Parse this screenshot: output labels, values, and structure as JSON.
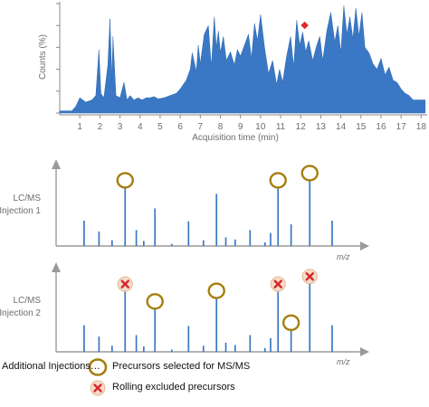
{
  "colors": {
    "accent": "#3a78c5",
    "axis": "#8a8a8a",
    "selected": "#a57f0e",
    "excluded": "#d8272b"
  },
  "chromatogram": {
    "ylabel": "Counts (%)",
    "xlabel": "Acquisition time (min)",
    "x_ticks": [
      "1",
      "2",
      "3",
      "4",
      "5",
      "6",
      "7",
      "8",
      "9",
      "10",
      "11",
      "12",
      "13",
      "14",
      "15",
      "16",
      "17",
      "18"
    ],
    "marker_time": 12.2
  },
  "chart_data": [
    {
      "type": "area",
      "xlabel": "Acquisition time (min)",
      "ylabel": "Counts (%)",
      "xlim": [
        0,
        18.3
      ],
      "ylim": [
        0,
        100
      ],
      "x": [
        0.0,
        0.6,
        0.8,
        1.0,
        1.3,
        1.6,
        1.8,
        1.95,
        2.05,
        2.2,
        2.4,
        2.5,
        2.6,
        2.65,
        2.8,
        3.0,
        3.2,
        3.35,
        3.5,
        3.7,
        3.9,
        4.1,
        4.3,
        4.5,
        4.7,
        4.9,
        5.2,
        5.5,
        5.8,
        6.0,
        6.3,
        6.5,
        6.6,
        6.8,
        6.9,
        7.0,
        7.2,
        7.4,
        7.55,
        7.7,
        7.8,
        7.9,
        8.0,
        8.15,
        8.3,
        8.5,
        8.7,
        8.85,
        9.0,
        9.2,
        9.4,
        9.55,
        9.7,
        9.85,
        10.0,
        10.2,
        10.4,
        10.6,
        10.8,
        10.95,
        11.1,
        11.3,
        11.5,
        11.65,
        11.8,
        11.95,
        12.1,
        12.25,
        12.4,
        12.6,
        12.8,
        12.95,
        13.1,
        13.3,
        13.5,
        13.7,
        13.85,
        14.0,
        14.15,
        14.3,
        14.45,
        14.6,
        14.75,
        14.9,
        15.05,
        15.2,
        15.4,
        15.6,
        15.8,
        16.0,
        16.2,
        16.4,
        16.6,
        16.8,
        17.0,
        17.2,
        17.4,
        17.6,
        17.8,
        18.0,
        18.2
      ],
      "values": [
        2,
        2,
        6,
        14,
        10,
        12,
        16,
        58,
        18,
        14,
        44,
        86,
        30,
        70,
        16,
        14,
        28,
        12,
        16,
        12,
        14,
        12,
        14,
        14,
        15,
        13,
        14,
        16,
        18,
        22,
        30,
        40,
        55,
        38,
        62,
        45,
        72,
        80,
        42,
        88,
        60,
        75,
        55,
        70,
        48,
        56,
        44,
        58,
        52,
        62,
        72,
        50,
        82,
        66,
        90,
        60,
        36,
        48,
        26,
        40,
        28,
        52,
        70,
        42,
        85,
        62,
        74,
        56,
        66,
        48,
        62,
        70,
        48,
        75,
        92,
        65,
        80,
        55,
        98,
        72,
        88,
        68,
        96,
        70,
        92,
        60,
        55,
        45,
        40,
        50,
        35,
        42,
        30,
        28,
        22,
        18,
        16,
        12,
        12,
        12,
        12
      ]
    },
    {
      "type": "bar",
      "title": "LC/MS Injection 1",
      "xlabel": "m/z",
      "x": [
        1.5,
        2.3,
        3.0,
        3.7,
        4.3,
        4.7,
        5.3,
        6.2,
        7.1,
        7.9,
        8.6,
        9.1,
        9.6,
        10.4,
        11.2,
        11.5,
        11.9,
        12.6,
        13.6,
        14.8
      ],
      "values": [
        35,
        20,
        8,
        82,
        22,
        7,
        52,
        3,
        34,
        8,
        72,
        12,
        9,
        22,
        5,
        18,
        82,
        30,
        92,
        35
      ],
      "selected_precursors": [
        3,
        16,
        18
      ]
    },
    {
      "type": "bar",
      "title": "LC/MS Injection 2",
      "xlabel": "m/z",
      "x": [
        1.5,
        2.3,
        3.0,
        3.7,
        4.3,
        4.7,
        5.3,
        6.2,
        7.1,
        7.9,
        8.6,
        9.1,
        9.6,
        10.4,
        11.2,
        11.5,
        11.9,
        12.6,
        13.6,
        14.8
      ],
      "values": [
        35,
        20,
        8,
        82,
        22,
        7,
        58,
        3,
        34,
        8,
        72,
        12,
        9,
        22,
        5,
        18,
        82,
        30,
        92,
        35
      ],
      "selected_precursors": [
        6,
        10,
        17
      ],
      "excluded_precursors": [
        3,
        16,
        18
      ]
    }
  ],
  "panels": [
    {
      "label_line1": "LC/MS",
      "label_line2": "Injection 1",
      "xlabel": "m/z"
    },
    {
      "label_line1": "LC/MS",
      "label_line2": "Injection 2",
      "xlabel": "m/z"
    }
  ],
  "legend": {
    "additional": "Additional Injections…",
    "selected": "Precursors selected for MS/MS",
    "excluded": "Rolling excluded precursors"
  }
}
